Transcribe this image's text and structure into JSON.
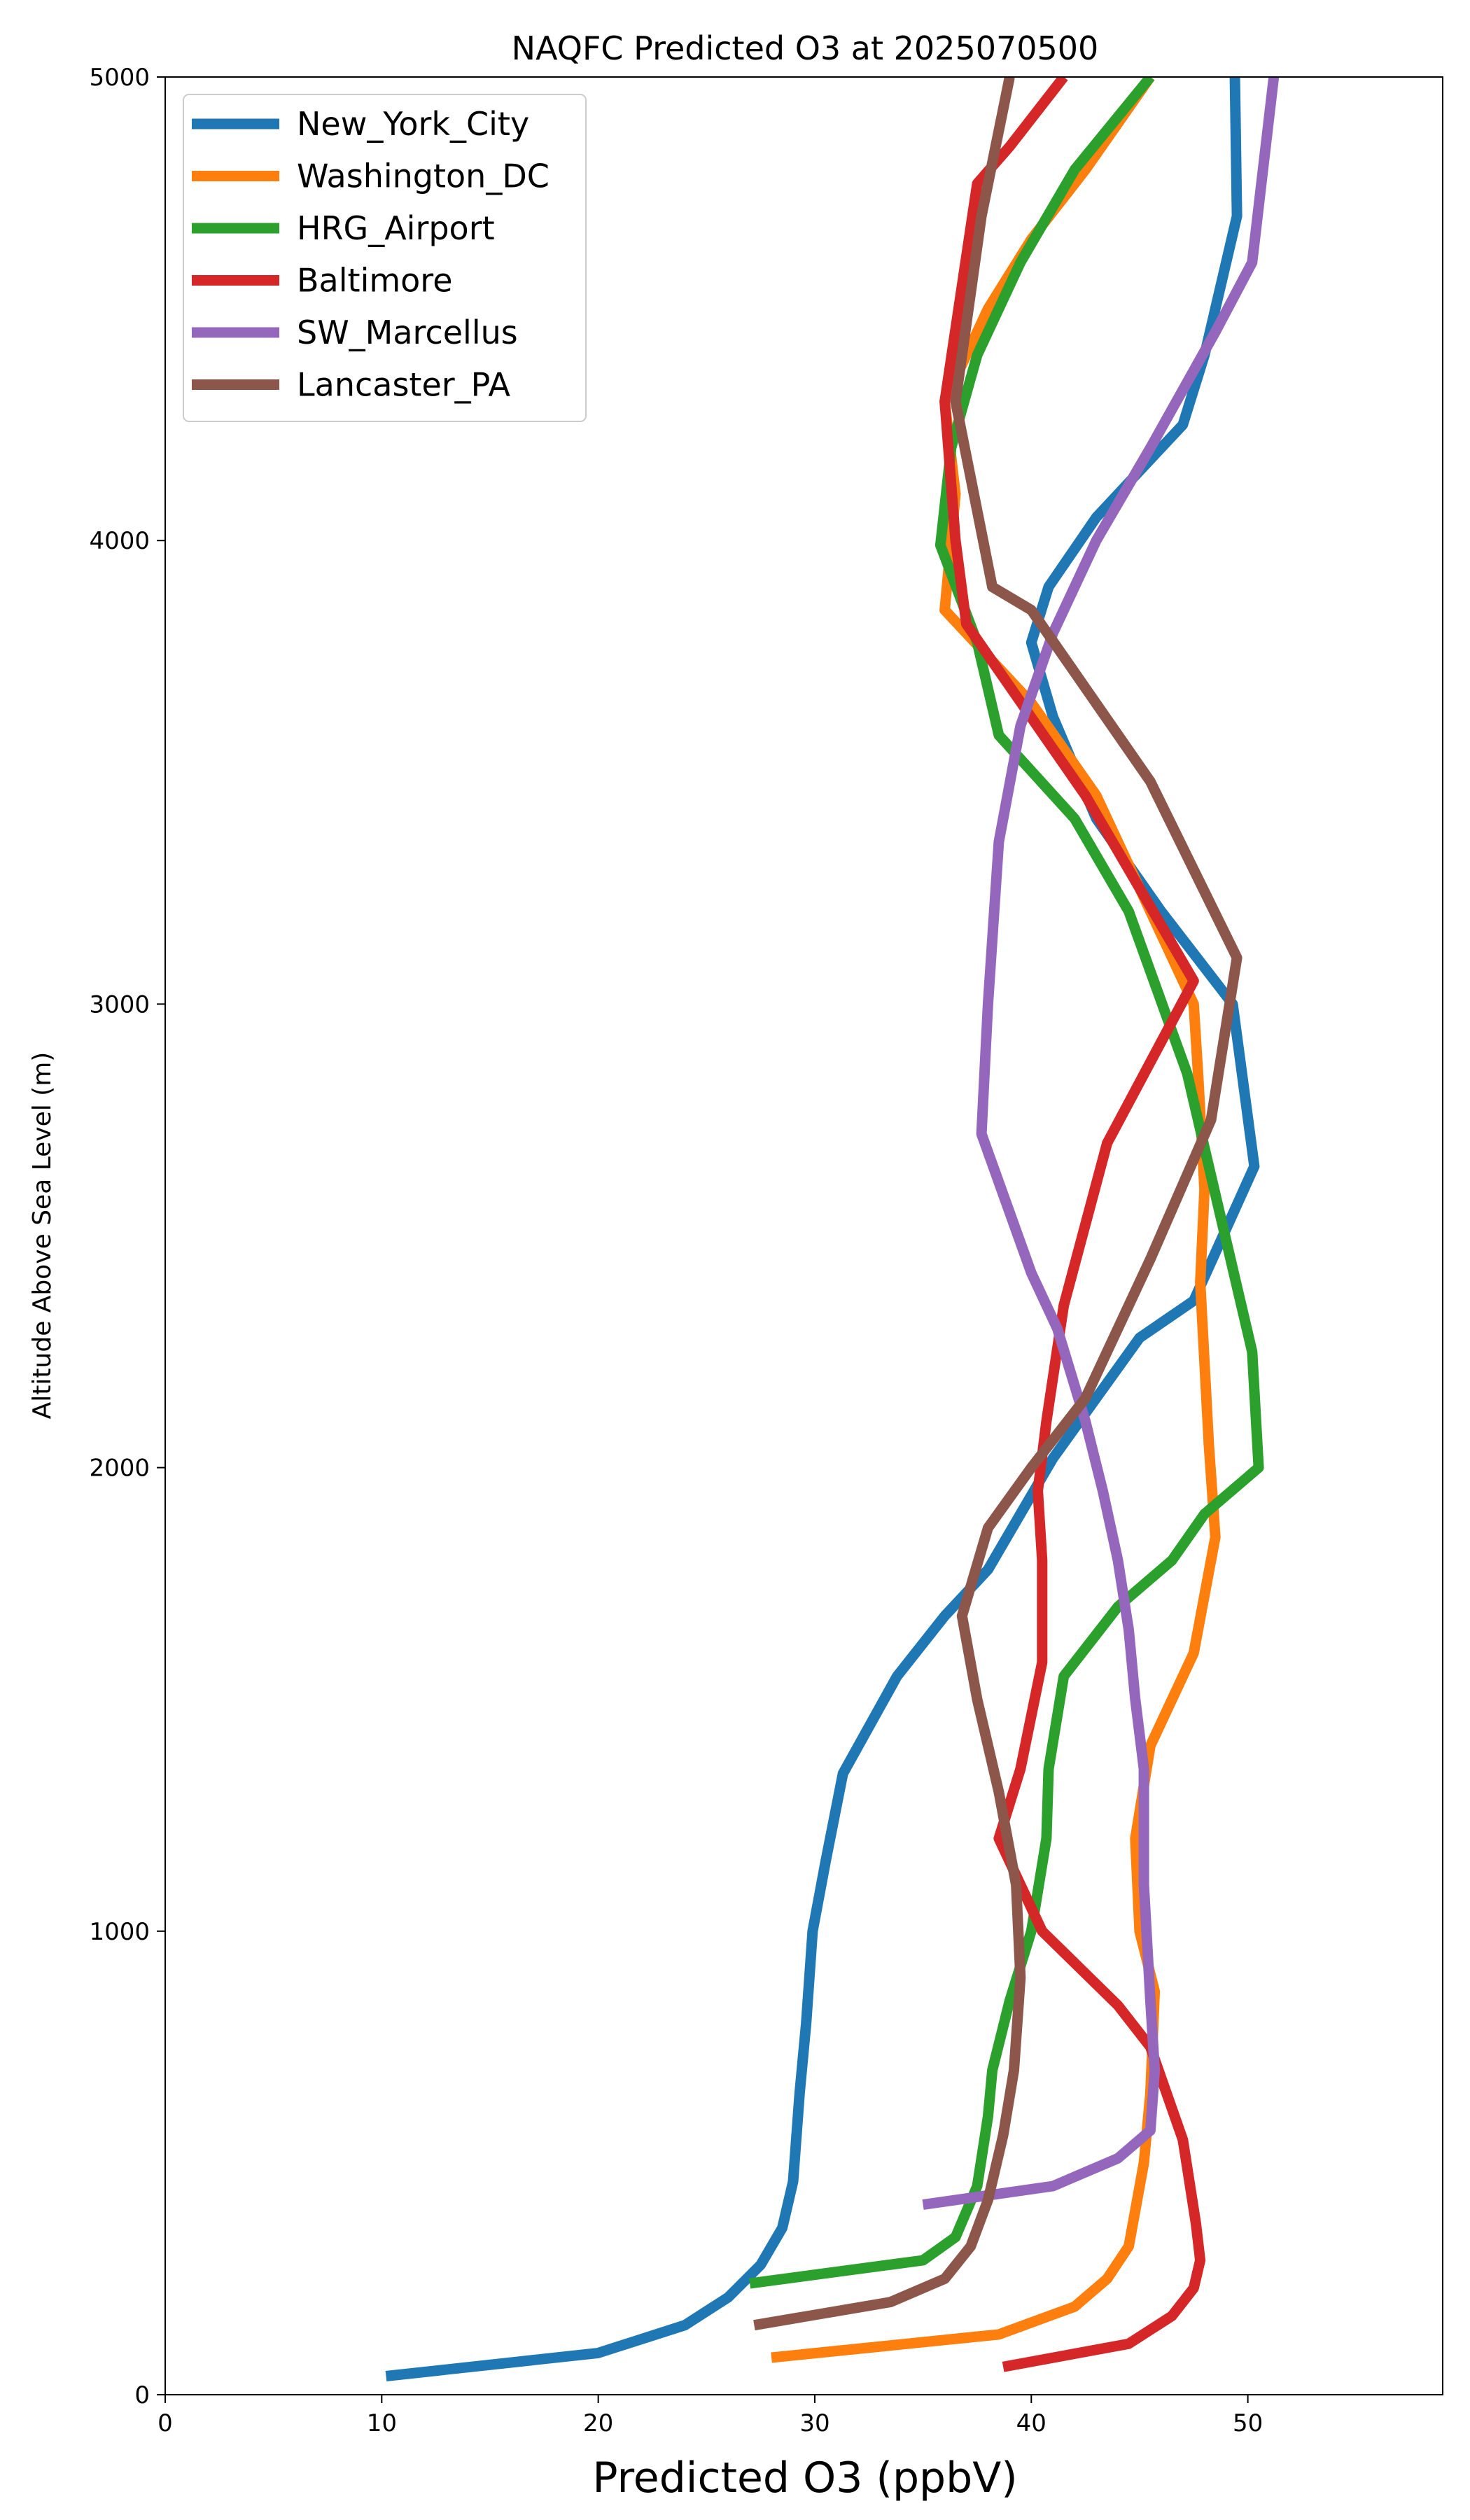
{
  "chart_data": {
    "type": "line",
    "title": "NAQFC Predicted O3 at 2025070500",
    "xlabel": "Predicted O3 (ppbV)",
    "ylabel": "Altitude Above Sea Level (m)",
    "xlim": [
      0,
      59
    ],
    "ylim": [
      0,
      5000
    ],
    "xticks": [
      0,
      10,
      20,
      30,
      40,
      50
    ],
    "yticks": [
      0,
      1000,
      2000,
      3000,
      4000,
      5000
    ],
    "xtick_labels": [
      "0",
      "10",
      "20",
      "30",
      "40",
      "50"
    ],
    "ytick_labels": [
      "0",
      "1000",
      "2000",
      "3000",
      "4000",
      "5000"
    ],
    "grid": false,
    "legend_position": "upper-left",
    "series": [
      {
        "name": "New_York_City",
        "color": "#1f77b4",
        "points": [
          [
            10.2,
            40
          ],
          [
            20,
            90
          ],
          [
            24,
            150
          ],
          [
            26,
            210
          ],
          [
            27.5,
            280
          ],
          [
            28.5,
            360
          ],
          [
            29,
            460
          ],
          [
            29.3,
            650
          ],
          [
            29.6,
            800
          ],
          [
            29.9,
            1000
          ],
          [
            30.5,
            1150
          ],
          [
            31.3,
            1340
          ],
          [
            33.8,
            1550
          ],
          [
            36,
            1680
          ],
          [
            38,
            1780
          ],
          [
            39.5,
            1900
          ],
          [
            41,
            2020
          ],
          [
            43,
            2150
          ],
          [
            45,
            2280
          ],
          [
            47.5,
            2360
          ],
          [
            50.3,
            2650
          ],
          [
            49.3,
            3000
          ],
          [
            46,
            3200
          ],
          [
            43,
            3400
          ],
          [
            41,
            3620
          ],
          [
            40,
            3780
          ],
          [
            40.8,
            3900
          ],
          [
            43,
            4050
          ],
          [
            45,
            4150
          ],
          [
            47,
            4250
          ],
          [
            48,
            4400
          ],
          [
            49.5,
            4700
          ],
          [
            49.4,
            5000
          ]
        ]
      },
      {
        "name": "Washington_DC",
        "color": "#ff7f0e",
        "points": [
          [
            28,
            80
          ],
          [
            38.5,
            130
          ],
          [
            42,
            190
          ],
          [
            43.5,
            250
          ],
          [
            44.5,
            320
          ],
          [
            45.2,
            500
          ],
          [
            45.5,
            650
          ],
          [
            45.7,
            870
          ],
          [
            45,
            1000
          ],
          [
            44.8,
            1200
          ],
          [
            45.5,
            1400
          ],
          [
            47.5,
            1600
          ],
          [
            48.5,
            1850
          ],
          [
            48.2,
            2050
          ],
          [
            47.8,
            2400
          ],
          [
            48,
            2600
          ],
          [
            47.7,
            2850
          ],
          [
            47.5,
            3000
          ],
          [
            45,
            3250
          ],
          [
            43,
            3450
          ],
          [
            40,
            3650
          ],
          [
            36,
            3850
          ],
          [
            36.5,
            4100
          ],
          [
            36,
            4300
          ],
          [
            38,
            4500
          ],
          [
            40,
            4650
          ],
          [
            42.5,
            4800
          ],
          [
            45.5,
            5000
          ]
        ]
      },
      {
        "name": "HRG_Airport",
        "color": "#2ca02c",
        "points": [
          [
            27,
            240
          ],
          [
            35,
            290
          ],
          [
            36.5,
            340
          ],
          [
            37.5,
            450
          ],
          [
            38,
            600
          ],
          [
            38.2,
            700
          ],
          [
            39,
            850
          ],
          [
            40,
            1000
          ],
          [
            40.7,
            1200
          ],
          [
            40.8,
            1350
          ],
          [
            41.5,
            1550
          ],
          [
            44,
            1700
          ],
          [
            46.5,
            1800
          ],
          [
            48,
            1900
          ],
          [
            50.5,
            2000
          ],
          [
            50.2,
            2250
          ],
          [
            48.2,
            2650
          ],
          [
            47.2,
            2850
          ],
          [
            44.5,
            3200
          ],
          [
            42,
            3400
          ],
          [
            38.5,
            3580
          ],
          [
            37.5,
            3780
          ],
          [
            35.8,
            3990
          ],
          [
            36.3,
            4200
          ],
          [
            37.5,
            4400
          ],
          [
            39.5,
            4600
          ],
          [
            42,
            4800
          ],
          [
            45.5,
            5000
          ]
        ]
      },
      {
        "name": "Baltimore",
        "color": "#d62728",
        "points": [
          [
            38.7,
            60
          ],
          [
            44.5,
            110
          ],
          [
            46.5,
            170
          ],
          [
            47.5,
            230
          ],
          [
            47.8,
            290
          ],
          [
            47.6,
            370
          ],
          [
            47,
            550
          ],
          [
            45.5,
            750
          ],
          [
            44,
            840
          ],
          [
            40.5,
            1000
          ],
          [
            38.5,
            1200
          ],
          [
            39.5,
            1350
          ],
          [
            40.5,
            1580
          ],
          [
            40.5,
            1800
          ],
          [
            40.3,
            1950
          ],
          [
            40.7,
            2100
          ],
          [
            41.5,
            2350
          ],
          [
            43.5,
            2700
          ],
          [
            47.5,
            3050
          ],
          [
            42.5,
            3450
          ],
          [
            37,
            3820
          ],
          [
            36.5,
            4000
          ],
          [
            36,
            4300
          ],
          [
            37.5,
            4770
          ],
          [
            39,
            4850
          ],
          [
            41.5,
            5000
          ]
        ]
      },
      {
        "name": "SW_Marcellus",
        "color": "#9467bd",
        "points": [
          [
            35,
            410
          ],
          [
            41,
            450
          ],
          [
            44,
            510
          ],
          [
            45.5,
            570
          ],
          [
            45.7,
            700
          ],
          [
            45.5,
            850
          ],
          [
            45.2,
            1100
          ],
          [
            45.2,
            1350
          ],
          [
            44.8,
            1500
          ],
          [
            44.5,
            1650
          ],
          [
            44,
            1800
          ],
          [
            43.3,
            1950
          ],
          [
            42.5,
            2100
          ],
          [
            41.2,
            2300
          ],
          [
            40,
            2420
          ],
          [
            37.7,
            2720
          ],
          [
            38,
            3000
          ],
          [
            38.5,
            3350
          ],
          [
            39.5,
            3600
          ],
          [
            41,
            3800
          ],
          [
            43,
            4000
          ],
          [
            45.5,
            4200
          ],
          [
            48.5,
            4450
          ],
          [
            50.2,
            4600
          ],
          [
            51.2,
            5000
          ]
        ]
      },
      {
        "name": "Lancaster_PA",
        "color": "#8c564b",
        "points": [
          [
            27.2,
            150
          ],
          [
            33.5,
            200
          ],
          [
            36,
            250
          ],
          [
            37.2,
            320
          ],
          [
            38,
            420
          ],
          [
            38.7,
            560
          ],
          [
            39.2,
            700
          ],
          [
            39.5,
            900
          ],
          [
            39.3,
            1100
          ],
          [
            38.5,
            1300
          ],
          [
            37.5,
            1500
          ],
          [
            36.8,
            1680
          ],
          [
            38,
            1870
          ],
          [
            40,
            2000
          ],
          [
            42.5,
            2150
          ],
          [
            44,
            2300
          ],
          [
            45.5,
            2450
          ],
          [
            48.3,
            2750
          ],
          [
            49.5,
            3100
          ],
          [
            45.5,
            3480
          ],
          [
            40,
            3850
          ],
          [
            38.2,
            3900
          ],
          [
            36.5,
            4300
          ],
          [
            37.7,
            4700
          ],
          [
            39,
            5000
          ]
        ]
      }
    ]
  }
}
